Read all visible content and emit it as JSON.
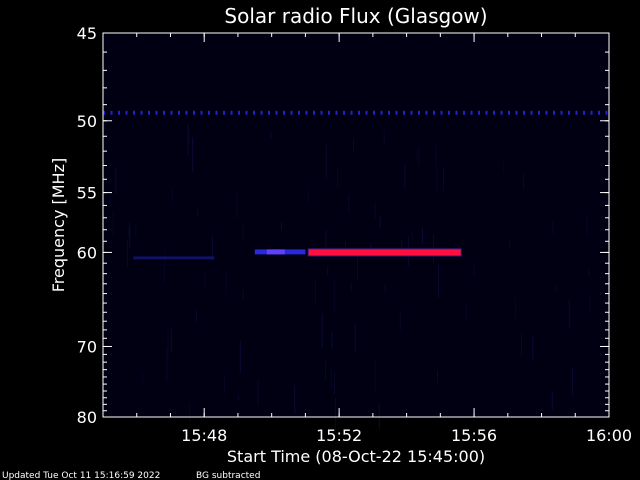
{
  "chart_data": {
    "type": "heatmap",
    "title": "Solar radio Flux (Glasgow)",
    "xlabel": "Start Time (08-Oct-22 15:45:00)",
    "ylabel": "Frequency [MHz]",
    "x_range_minutes": [
      0,
      15
    ],
    "y_range_mhz": [
      45,
      80
    ],
    "y_scale": "reciprocal",
    "x_ticks": [
      {
        "label": "15:48",
        "minute": 3
      },
      {
        "label": "15:52",
        "minute": 7
      },
      {
        "label": "15:56",
        "minute": 11
      },
      {
        "label": "16:00",
        "minute": 15
      }
    ],
    "y_ticks": [
      {
        "label": "45",
        "mhz": 45
      },
      {
        "label": "50",
        "mhz": 50
      },
      {
        "label": "55",
        "mhz": 55
      },
      {
        "label": "60",
        "mhz": 60
      },
      {
        "label": "70",
        "mhz": 70
      },
      {
        "label": "80",
        "mhz": 80
      }
    ],
    "features": [
      {
        "name": "interference-line-49.5MHz",
        "mhz": 49.5,
        "start_minute": 0,
        "end_minute": 15,
        "intensity": "low",
        "color": "#2222cc"
      },
      {
        "name": "burst-core",
        "mhz": 60,
        "start_minute": 6.1,
        "end_minute": 10.6,
        "intensity": "high",
        "color": "#ff1040"
      },
      {
        "name": "burst-onset",
        "mhz": 60,
        "start_minute": 4.5,
        "end_minute": 6.0,
        "intensity": "medium",
        "color": "#3030ff"
      },
      {
        "name": "faint-emission",
        "mhz": 60.5,
        "start_minute": 0.9,
        "end_minute": 3.3,
        "intensity": "faint",
        "color": "#15157a"
      }
    ],
    "colors": {
      "background": "#000000",
      "plot": "#000012",
      "text": "#ffffff"
    }
  },
  "footer": {
    "updated": "Updated Tue Oct 11 15:16:59 2022",
    "note": "BG subtracted"
  }
}
